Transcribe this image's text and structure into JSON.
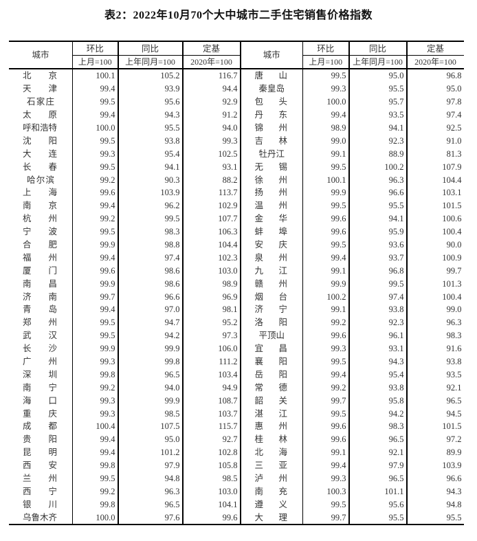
{
  "title": "表2：2022年10月70个大中城市二手住宅销售价格指数",
  "headers": {
    "city": "城市",
    "mom": "环比",
    "mom_base": "上月=100",
    "yoy": "同比",
    "yoy_base": "上年同月=100",
    "fixed": "定基",
    "fixed_base": "2020年=100"
  },
  "left": [
    [
      "北京",
      "100.1",
      "105.2",
      "116.7"
    ],
    [
      "天津",
      "99.4",
      "93.9",
      "94.4"
    ],
    [
      "石家庄",
      "99.5",
      "95.6",
      "92.9"
    ],
    [
      "太原",
      "99.4",
      "94.3",
      "91.2"
    ],
    [
      "呼和浩特",
      "100.0",
      "95.5",
      "94.0"
    ],
    [
      "沈阳",
      "99.5",
      "93.8",
      "99.3"
    ],
    [
      "大连",
      "99.3",
      "95.4",
      "102.5"
    ],
    [
      "长春",
      "99.5",
      "94.1",
      "93.1"
    ],
    [
      "哈尔滨",
      "99.2",
      "90.3",
      "88.2"
    ],
    [
      "上海",
      "99.6",
      "103.9",
      "113.7"
    ],
    [
      "南京",
      "99.4",
      "96.2",
      "102.9"
    ],
    [
      "杭州",
      "99.2",
      "99.5",
      "107.7"
    ],
    [
      "宁波",
      "99.5",
      "98.3",
      "106.3"
    ],
    [
      "合肥",
      "99.9",
      "98.8",
      "104.4"
    ],
    [
      "福州",
      "99.4",
      "97.4",
      "102.3"
    ],
    [
      "厦门",
      "99.6",
      "98.6",
      "103.0"
    ],
    [
      "南昌",
      "99.9",
      "98.6",
      "98.9"
    ],
    [
      "济南",
      "99.7",
      "96.6",
      "96.9"
    ],
    [
      "青岛",
      "99.4",
      "97.0",
      "98.1"
    ],
    [
      "郑州",
      "99.5",
      "94.7",
      "95.2"
    ],
    [
      "武汉",
      "99.5",
      "94.2",
      "97.3"
    ],
    [
      "长沙",
      "99.9",
      "99.9",
      "106.0"
    ],
    [
      "广州",
      "99.3",
      "99.8",
      "111.2"
    ],
    [
      "深圳",
      "99.8",
      "96.5",
      "103.4"
    ],
    [
      "南宁",
      "99.2",
      "94.0",
      "94.9"
    ],
    [
      "海口",
      "99.3",
      "99.9",
      "108.7"
    ],
    [
      "重庆",
      "99.3",
      "98.5",
      "103.7"
    ],
    [
      "成都",
      "100.4",
      "107.5",
      "115.7"
    ],
    [
      "贵阳",
      "99.4",
      "95.0",
      "92.7"
    ],
    [
      "昆明",
      "99.4",
      "101.2",
      "102.8"
    ],
    [
      "西安",
      "99.8",
      "97.9",
      "105.8"
    ],
    [
      "兰州",
      "99.5",
      "94.8",
      "98.5"
    ],
    [
      "西宁",
      "99.2",
      "96.3",
      "103.0"
    ],
    [
      "银川",
      "99.8",
      "96.5",
      "104.1"
    ],
    [
      "乌鲁木齐",
      "100.0",
      "97.6",
      "99.6"
    ]
  ],
  "right": [
    [
      "唐山",
      "99.5",
      "95.0",
      "96.8"
    ],
    [
      "秦皇岛",
      "99.3",
      "95.5",
      "95.0"
    ],
    [
      "包头",
      "100.0",
      "95.7",
      "97.8"
    ],
    [
      "丹东",
      "99.4",
      "93.5",
      "97.4"
    ],
    [
      "锦州",
      "98.9",
      "94.1",
      "92.5"
    ],
    [
      "吉林",
      "99.0",
      "92.3",
      "91.0"
    ],
    [
      "牡丹江",
      "99.1",
      "88.9",
      "81.3"
    ],
    [
      "无锡",
      "99.5",
      "100.2",
      "107.9"
    ],
    [
      "徐州",
      "100.1",
      "96.3",
      "104.4"
    ],
    [
      "扬州",
      "99.9",
      "96.6",
      "103.1"
    ],
    [
      "温州",
      "99.5",
      "95.5",
      "101.5"
    ],
    [
      "金华",
      "99.6",
      "94.1",
      "100.6"
    ],
    [
      "蚌埠",
      "99.6",
      "95.9",
      "100.4"
    ],
    [
      "安庆",
      "99.5",
      "93.6",
      "90.0"
    ],
    [
      "泉州",
      "99.4",
      "93.7",
      "100.9"
    ],
    [
      "九江",
      "99.1",
      "96.8",
      "99.7"
    ],
    [
      "赣州",
      "99.9",
      "99.5",
      "101.3"
    ],
    [
      "烟台",
      "100.2",
      "97.4",
      "100.4"
    ],
    [
      "济宁",
      "99.1",
      "93.8",
      "99.0"
    ],
    [
      "洛阳",
      "99.2",
      "92.3",
      "96.3"
    ],
    [
      "平顶山",
      "99.6",
      "96.1",
      "98.3"
    ],
    [
      "宜昌",
      "99.3",
      "93.1",
      "91.6"
    ],
    [
      "襄阳",
      "99.5",
      "94.3",
      "93.8"
    ],
    [
      "岳阳",
      "99.4",
      "95.4",
      "93.5"
    ],
    [
      "常德",
      "99.2",
      "93.8",
      "92.1"
    ],
    [
      "韶关",
      "99.7",
      "95.8",
      "96.5"
    ],
    [
      "湛江",
      "99.5",
      "94.2",
      "94.5"
    ],
    [
      "惠州",
      "99.6",
      "98.3",
      "101.5"
    ],
    [
      "桂林",
      "99.6",
      "96.5",
      "97.2"
    ],
    [
      "北海",
      "99.1",
      "92.1",
      "89.9"
    ],
    [
      "三亚",
      "99.4",
      "97.9",
      "103.9"
    ],
    [
      "泸州",
      "99.3",
      "96.5",
      "96.6"
    ],
    [
      "南充",
      "100.3",
      "101.1",
      "94.3"
    ],
    [
      "遵义",
      "99.5",
      "95.6",
      "94.8"
    ],
    [
      "大理",
      "99.7",
      "95.5",
      "95.5"
    ]
  ]
}
